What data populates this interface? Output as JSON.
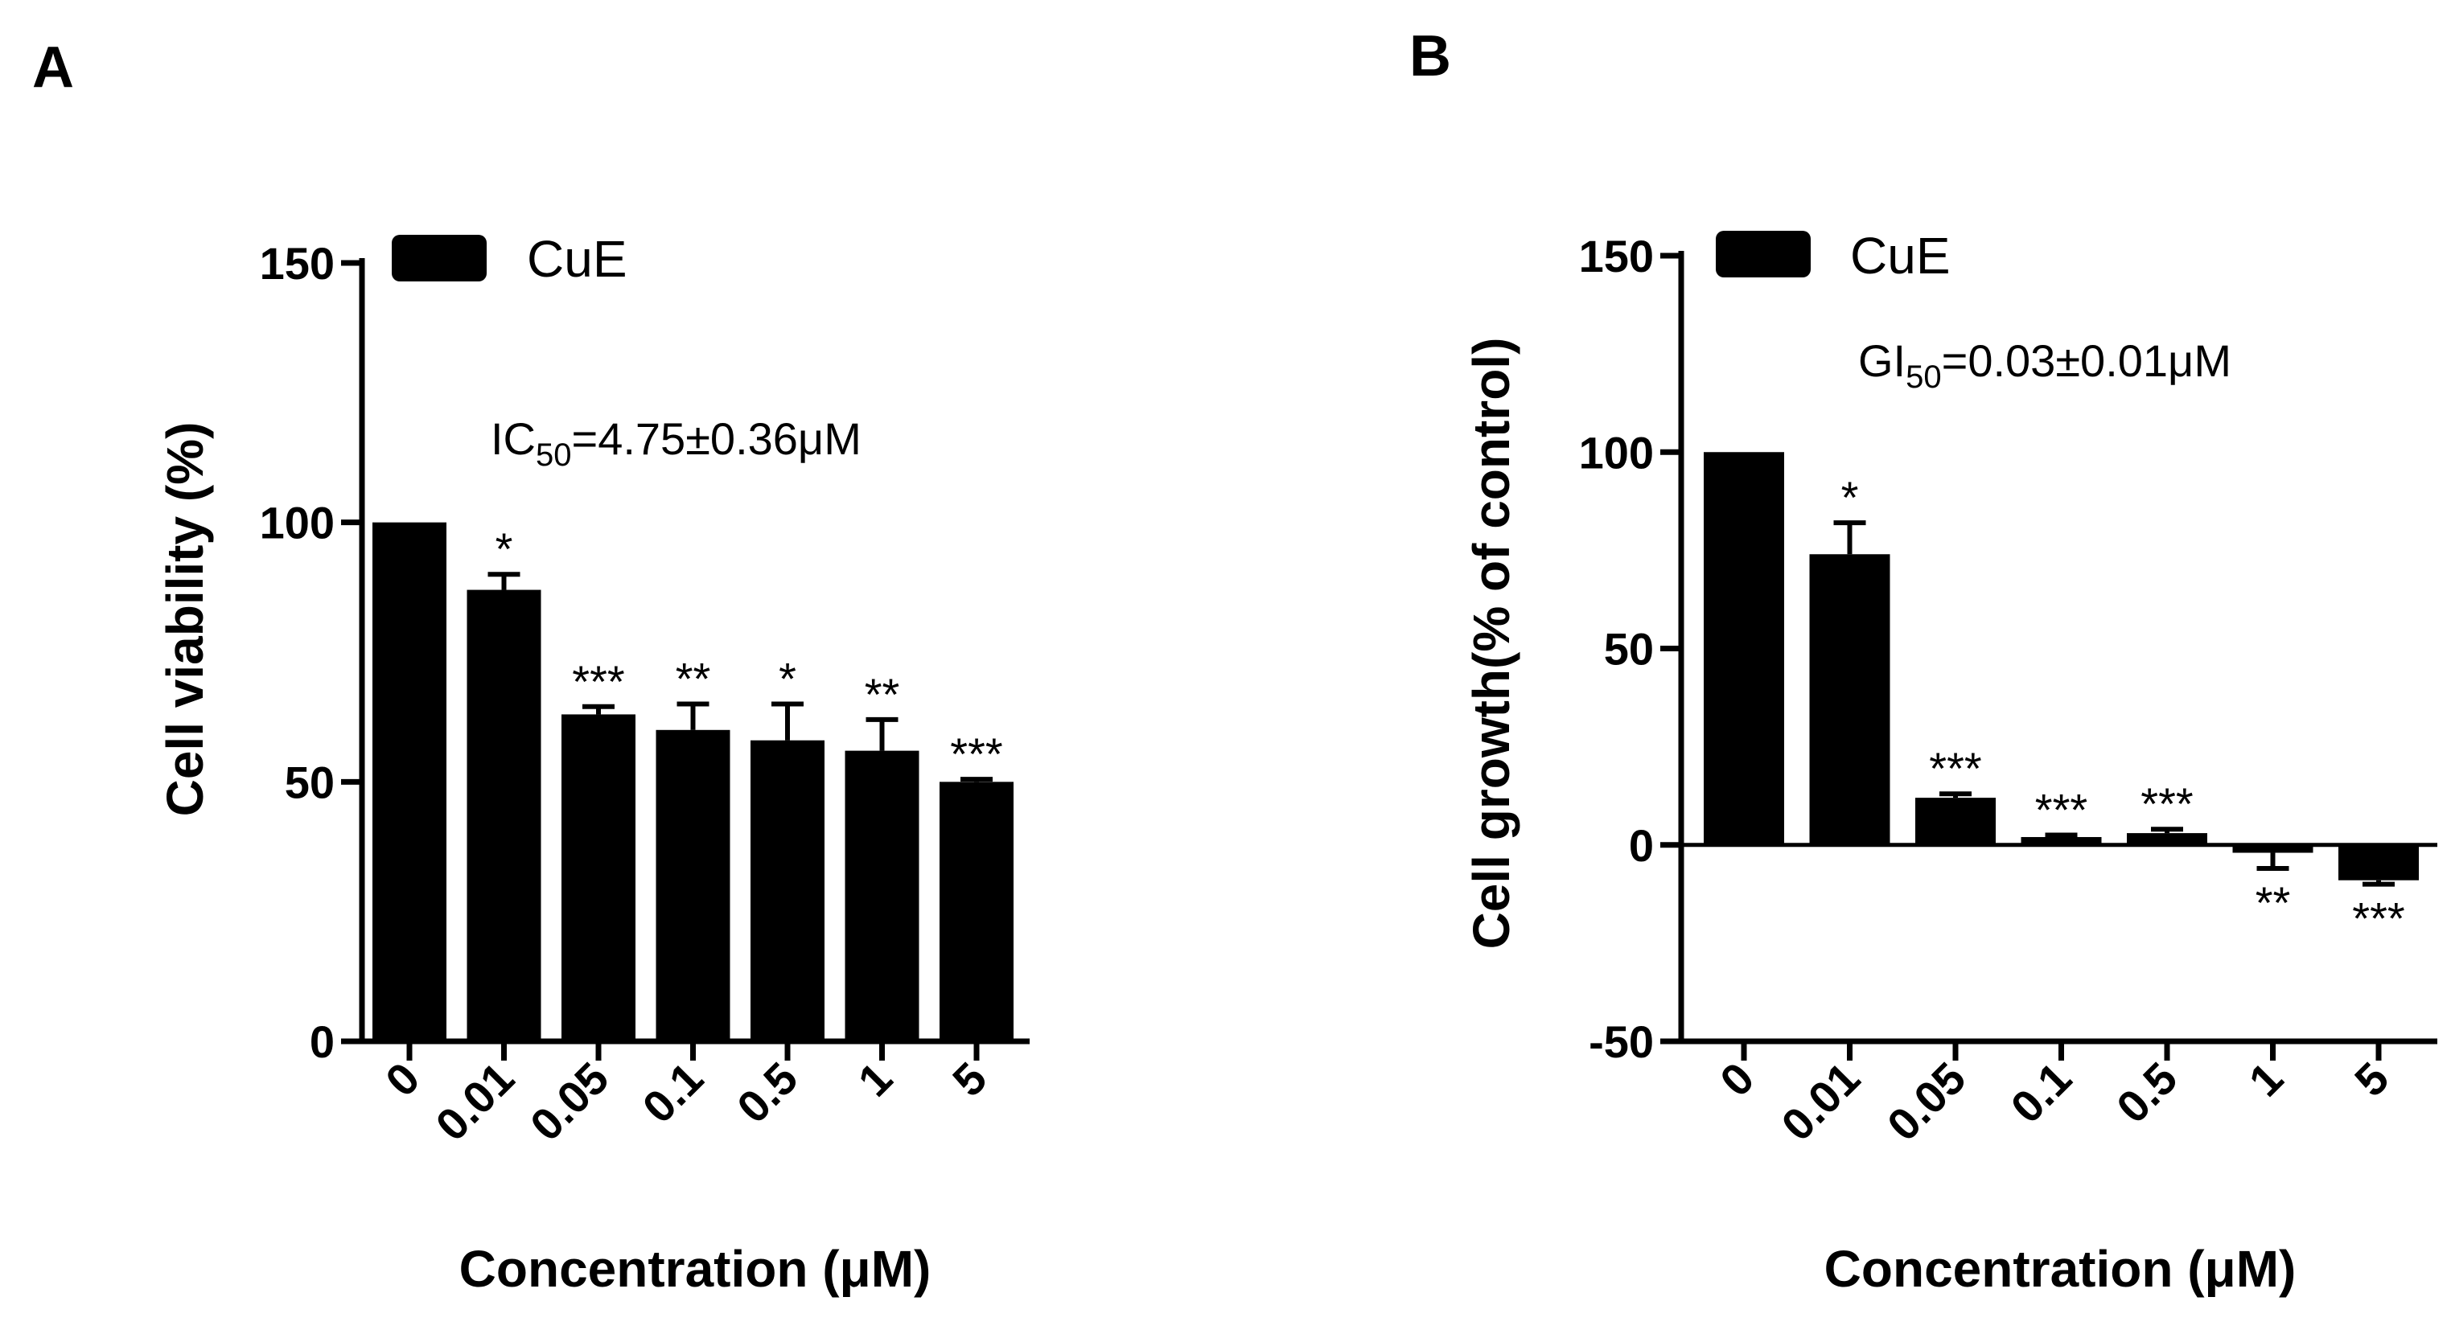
{
  "chart_data": [
    {
      "panel": "A",
      "type": "bar",
      "categories": [
        "0",
        "0.01",
        "0.05",
        "0.1",
        "0.5",
        "1",
        "5"
      ],
      "series": [
        {
          "name": "CuE",
          "values": [
            100,
            87,
            63,
            60,
            58,
            56,
            50
          ],
          "errors": [
            0,
            3,
            1.5,
            5,
            7,
            6,
            0.5
          ],
          "significance": [
            "",
            "*",
            "***",
            "**",
            "*",
            "**",
            "***"
          ]
        }
      ],
      "annotation": {
        "prefix": "IC",
        "subscript": "50",
        "suffix": "=4.75±0.36μM"
      },
      "xlabel": "Concentration (μM)",
      "ylabel": "Cell  viability (%)",
      "ylim": [
        0,
        150
      ],
      "yticks": [
        0,
        50,
        100,
        150
      ],
      "legend": "top-left"
    },
    {
      "panel": "B",
      "type": "bar",
      "categories": [
        "0",
        "0.01",
        "0.05",
        "0.1",
        "0.5",
        "1",
        "5"
      ],
      "series": [
        {
          "name": "CuE",
          "values": [
            100,
            74,
            12,
            2,
            3,
            -2,
            -9
          ],
          "errors": [
            0,
            8,
            1,
            0.5,
            1,
            4,
            1
          ],
          "significance": [
            "",
            "*",
            "***",
            "***",
            "***",
            "**",
            "***"
          ]
        }
      ],
      "annotation": {
        "prefix": "GI",
        "subscript": "50",
        "suffix": "=0.03±0.01μM"
      },
      "xlabel": "Concentration (μM)",
      "ylabel": "Cell growth(% of control)",
      "ylim": [
        -50,
        150
      ],
      "yticks": [
        -50,
        0,
        50,
        100,
        150
      ],
      "legend": "top-left"
    }
  ],
  "colors": {
    "bar": "#000000",
    "axis": "#000000",
    "background": "#ffffff"
  }
}
